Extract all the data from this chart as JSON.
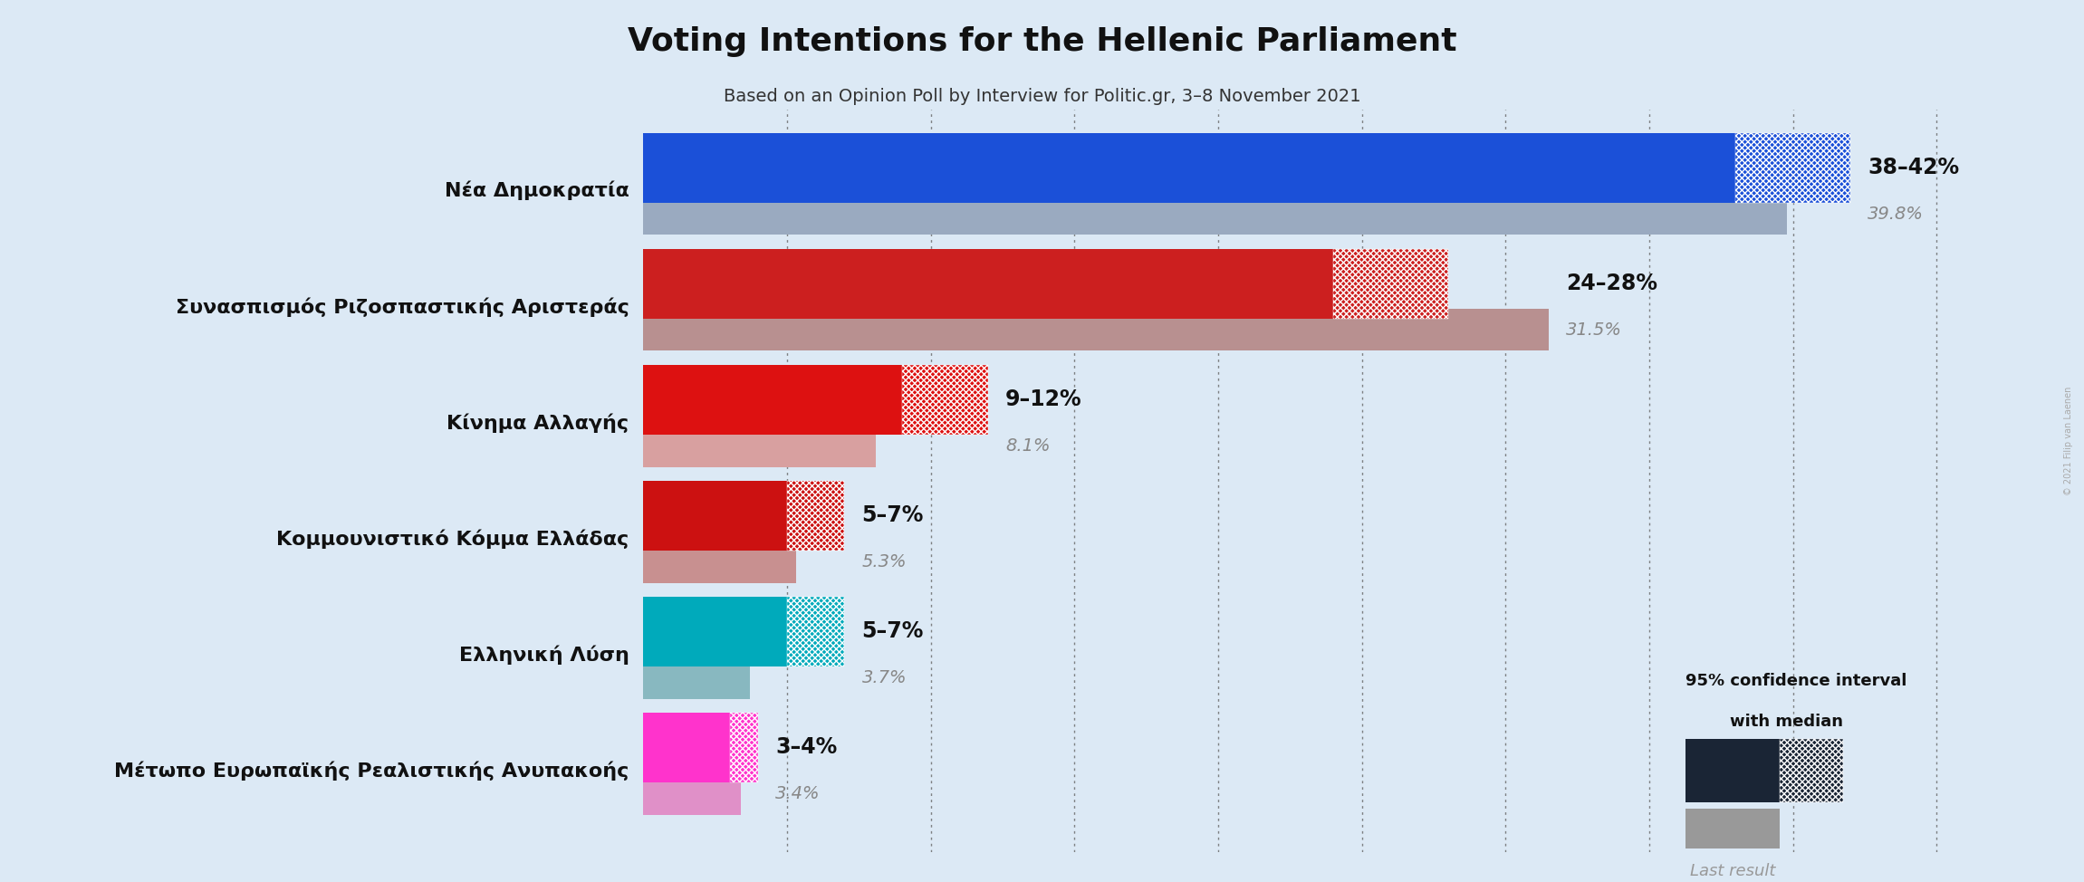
{
  "title": "Voting Intentions for the Hellenic Parliament",
  "subtitle": "Based on an Opinion Poll by Interview for Politic.gr, 3–8 November 2021",
  "background_color": "#dce9f5",
  "parties": [
    "Νέα Δημοκρατία",
    "Συνασπισμός Ριζοσπαστικής Αριστεράς",
    "Κίνημα Αλλαγής",
    "Κομμουνιστικό Κόμμα Ελλάδας",
    "Ελληνική Λύση",
    "Μέτωπο Ευρωπαϊκής Ρεαλιστικής Ανυπακοής"
  ],
  "ci_low": [
    38,
    24,
    9,
    5,
    5,
    3
  ],
  "ci_high": [
    42,
    28,
    12,
    7,
    7,
    4
  ],
  "last_result": [
    39.8,
    31.5,
    8.1,
    5.3,
    3.7,
    3.4
  ],
  "ci_labels": [
    "38–42%",
    "24–28%",
    "9–12%",
    "5–7%",
    "5–7%",
    "3–4%"
  ],
  "last_labels": [
    "39.8%",
    "31.5%",
    "8.1%",
    "5.3%",
    "3.7%",
    "3.4%"
  ],
  "bar_colors": [
    "#1b50d8",
    "#cc1f1f",
    "#dd1111",
    "#cc1111",
    "#00aabb",
    "#ff33cc"
  ],
  "last_colors": [
    "#9aaac0",
    "#b89090",
    "#d8a0a0",
    "#c89090",
    "#88b8c0",
    "#e090c8"
  ],
  "xlim_data": [
    0,
    45
  ]
}
